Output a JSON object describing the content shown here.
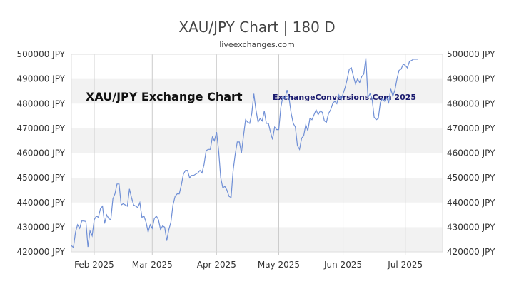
{
  "header": {
    "title": "XAU/JPY Chart | 180 D",
    "subtitle": "liveexchanges.com"
  },
  "colors": {
    "line": "#6f8fd6",
    "band": "#f2f2f2",
    "grid": "#cccccc"
  },
  "chart_data": {
    "type": "line",
    "title": "XAU/JPY Chart | 180 D",
    "inner_label": "XAU/JPY Exchange Chart",
    "watermark": "ExchangeConversions.Com 2025",
    "ylim": [
      420000,
      500000
    ],
    "y_ticks": [
      {
        "value": 500000,
        "label": "500000 JPY"
      },
      {
        "value": 490000,
        "label": "490000 JPY"
      },
      {
        "value": 480000,
        "label": "480000 JPY"
      },
      {
        "value": 470000,
        "label": "470000 JPY"
      },
      {
        "value": 460000,
        "label": "460000 JPY"
      },
      {
        "value": 450000,
        "label": "450000 JPY"
      },
      {
        "value": 440000,
        "label": "440000 JPY"
      },
      {
        "value": 430000,
        "label": "430000 JPY"
      },
      {
        "value": 420000,
        "label": "420000 JPY"
      }
    ],
    "x_range": [
      "2025-01-21",
      "2025-07-19"
    ],
    "x_ticks": [
      {
        "date": "2025-02-01",
        "label": "Feb 2025"
      },
      {
        "date": "2025-03-01",
        "label": "Mar 2025"
      },
      {
        "date": "2025-04-01",
        "label": "Apr 2025"
      },
      {
        "date": "2025-05-01",
        "label": "May 2025"
      },
      {
        "date": "2025-06-01",
        "label": "Jun 2025"
      },
      {
        "date": "2025-07-01",
        "label": "Jul 2025"
      }
    ],
    "grid": true,
    "series": [
      {
        "points": [
          [
            "2025-01-21",
            422500
          ],
          [
            "2025-01-22",
            421800
          ],
          [
            "2025-01-23",
            428000
          ],
          [
            "2025-01-24",
            431000
          ],
          [
            "2025-01-25",
            429500
          ],
          [
            "2025-01-26",
            432500
          ],
          [
            "2025-01-27",
            432500
          ],
          [
            "2025-01-28",
            432300
          ],
          [
            "2025-01-29",
            422000
          ],
          [
            "2025-01-30",
            428500
          ],
          [
            "2025-01-31",
            426500
          ],
          [
            "2025-02-01",
            433000
          ],
          [
            "2025-02-02",
            434500
          ],
          [
            "2025-02-03",
            434000
          ],
          [
            "2025-02-04",
            437500
          ],
          [
            "2025-02-05",
            438500
          ],
          [
            "2025-02-06",
            431500
          ],
          [
            "2025-02-07",
            435000
          ],
          [
            "2025-02-08",
            433500
          ],
          [
            "2025-02-09",
            433000
          ],
          [
            "2025-02-10",
            441500
          ],
          [
            "2025-02-11",
            443500
          ],
          [
            "2025-02-12",
            447500
          ],
          [
            "2025-02-13",
            447500
          ],
          [
            "2025-02-14",
            439000
          ],
          [
            "2025-02-15",
            439500
          ],
          [
            "2025-02-16",
            439000
          ],
          [
            "2025-02-17",
            438500
          ],
          [
            "2025-02-18",
            445500
          ],
          [
            "2025-02-19",
            442000
          ],
          [
            "2025-02-20",
            439000
          ],
          [
            "2025-02-21",
            438500
          ],
          [
            "2025-02-22",
            438000
          ],
          [
            "2025-02-23",
            440000
          ],
          [
            "2025-02-24",
            434000
          ],
          [
            "2025-02-25",
            434500
          ],
          [
            "2025-02-26",
            432000
          ],
          [
            "2025-02-27",
            428000
          ],
          [
            "2025-02-28",
            431000
          ],
          [
            "2025-03-01",
            429500
          ],
          [
            "2025-03-02",
            433500
          ],
          [
            "2025-03-03",
            434500
          ],
          [
            "2025-03-04",
            433000
          ],
          [
            "2025-03-05",
            429000
          ],
          [
            "2025-03-06",
            430500
          ],
          [
            "2025-03-07",
            430000
          ],
          [
            "2025-03-08",
            424500
          ],
          [
            "2025-03-09",
            429000
          ],
          [
            "2025-03-10",
            432000
          ],
          [
            "2025-03-11",
            439000
          ],
          [
            "2025-03-12",
            442500
          ],
          [
            "2025-03-13",
            443500
          ],
          [
            "2025-03-14",
            443500
          ],
          [
            "2025-03-15",
            447000
          ],
          [
            "2025-03-16",
            451500
          ],
          [
            "2025-03-17",
            453000
          ],
          [
            "2025-03-18",
            453000
          ],
          [
            "2025-03-19",
            450000
          ],
          [
            "2025-03-20",
            451000
          ],
          [
            "2025-03-21",
            451000
          ],
          [
            "2025-03-22",
            451500
          ],
          [
            "2025-03-23",
            452000
          ],
          [
            "2025-03-24",
            453000
          ],
          [
            "2025-03-25",
            452000
          ],
          [
            "2025-03-26",
            455500
          ],
          [
            "2025-03-27",
            461000
          ],
          [
            "2025-03-28",
            461500
          ],
          [
            "2025-03-29",
            461500
          ],
          [
            "2025-03-30",
            466500
          ],
          [
            "2025-03-31",
            465000
          ],
          [
            "2025-04-01",
            468500
          ],
          [
            "2025-04-02",
            461000
          ],
          [
            "2025-04-03",
            450000
          ],
          [
            "2025-04-04",
            446000
          ],
          [
            "2025-04-05",
            446500
          ],
          [
            "2025-04-06",
            445000
          ],
          [
            "2025-04-07",
            442500
          ],
          [
            "2025-04-08",
            442000
          ],
          [
            "2025-04-09",
            453000
          ],
          [
            "2025-04-10",
            459500
          ],
          [
            "2025-04-11",
            464500
          ],
          [
            "2025-04-12",
            464500
          ],
          [
            "2025-04-13",
            460000
          ],
          [
            "2025-04-14",
            467000
          ],
          [
            "2025-04-15",
            473500
          ],
          [
            "2025-04-16",
            472500
          ],
          [
            "2025-04-17",
            472000
          ],
          [
            "2025-04-18",
            476000
          ],
          [
            "2025-04-19",
            484000
          ],
          [
            "2025-04-20",
            477500
          ],
          [
            "2025-04-21",
            472500
          ],
          [
            "2025-04-22",
            474000
          ],
          [
            "2025-04-23",
            473000
          ],
          [
            "2025-04-24",
            477000
          ],
          [
            "2025-04-25",
            472000
          ],
          [
            "2025-04-26",
            472000
          ],
          [
            "2025-04-27",
            468500
          ],
          [
            "2025-04-28",
            465500
          ],
          [
            "2025-04-29",
            470500
          ],
          [
            "2025-04-30",
            469500
          ],
          [
            "2025-05-01",
            469500
          ],
          [
            "2025-05-02",
            478500
          ],
          [
            "2025-05-03",
            483000
          ],
          [
            "2025-05-04",
            482000
          ],
          [
            "2025-05-05",
            485500
          ],
          [
            "2025-05-06",
            482000
          ],
          [
            "2025-05-07",
            476000
          ],
          [
            "2025-05-08",
            472000
          ],
          [
            "2025-05-09",
            470500
          ],
          [
            "2025-05-10",
            463000
          ],
          [
            "2025-05-11",
            461500
          ],
          [
            "2025-05-12",
            466000
          ],
          [
            "2025-05-13",
            467000
          ],
          [
            "2025-05-14",
            471500
          ],
          [
            "2025-05-15",
            469000
          ],
          [
            "2025-05-16",
            474000
          ],
          [
            "2025-05-17",
            473500
          ],
          [
            "2025-05-18",
            475500
          ],
          [
            "2025-05-19",
            477500
          ],
          [
            "2025-05-20",
            475500
          ],
          [
            "2025-05-21",
            477000
          ],
          [
            "2025-05-22",
            476500
          ],
          [
            "2025-05-23",
            473000
          ],
          [
            "2025-05-24",
            472500
          ],
          [
            "2025-05-25",
            476000
          ],
          [
            "2025-05-26",
            477500
          ],
          [
            "2025-05-27",
            480000
          ],
          [
            "2025-05-28",
            481000
          ],
          [
            "2025-05-29",
            480000
          ],
          [
            "2025-05-30",
            483500
          ],
          [
            "2025-05-31",
            481500
          ],
          [
            "2025-06-01",
            484000
          ],
          [
            "2025-06-02",
            486500
          ],
          [
            "2025-06-03",
            490000
          ],
          [
            "2025-06-04",
            494000
          ],
          [
            "2025-06-05",
            494500
          ],
          [
            "2025-06-06",
            491000
          ],
          [
            "2025-06-07",
            488000
          ],
          [
            "2025-06-08",
            490000
          ],
          [
            "2025-06-09",
            488500
          ],
          [
            "2025-06-10",
            491000
          ],
          [
            "2025-06-11",
            492000
          ],
          [
            "2025-06-12",
            498500
          ],
          [
            "2025-06-13",
            482500
          ],
          [
            "2025-06-14",
            484000
          ],
          [
            "2025-06-15",
            482000
          ],
          [
            "2025-06-16",
            474500
          ],
          [
            "2025-06-17",
            473500
          ],
          [
            "2025-06-18",
            474000
          ],
          [
            "2025-06-19",
            480500
          ],
          [
            "2025-06-20",
            482000
          ],
          [
            "2025-06-21",
            481000
          ],
          [
            "2025-06-22",
            482500
          ],
          [
            "2025-06-23",
            480500
          ],
          [
            "2025-06-24",
            486000
          ],
          [
            "2025-06-25",
            483000
          ],
          [
            "2025-06-26",
            485500
          ],
          [
            "2025-06-27",
            490000
          ],
          [
            "2025-06-28",
            493500
          ],
          [
            "2025-06-29",
            494000
          ],
          [
            "2025-06-30",
            496000
          ],
          [
            "2025-07-01",
            495500
          ],
          [
            "2025-07-02",
            494500
          ],
          [
            "2025-07-03",
            497000
          ],
          [
            "2025-07-04",
            497500
          ],
          [
            "2025-07-05",
            498000
          ],
          [
            "2025-07-06",
            498000
          ],
          [
            "2025-07-07",
            498000
          ]
        ]
      }
    ]
  }
}
